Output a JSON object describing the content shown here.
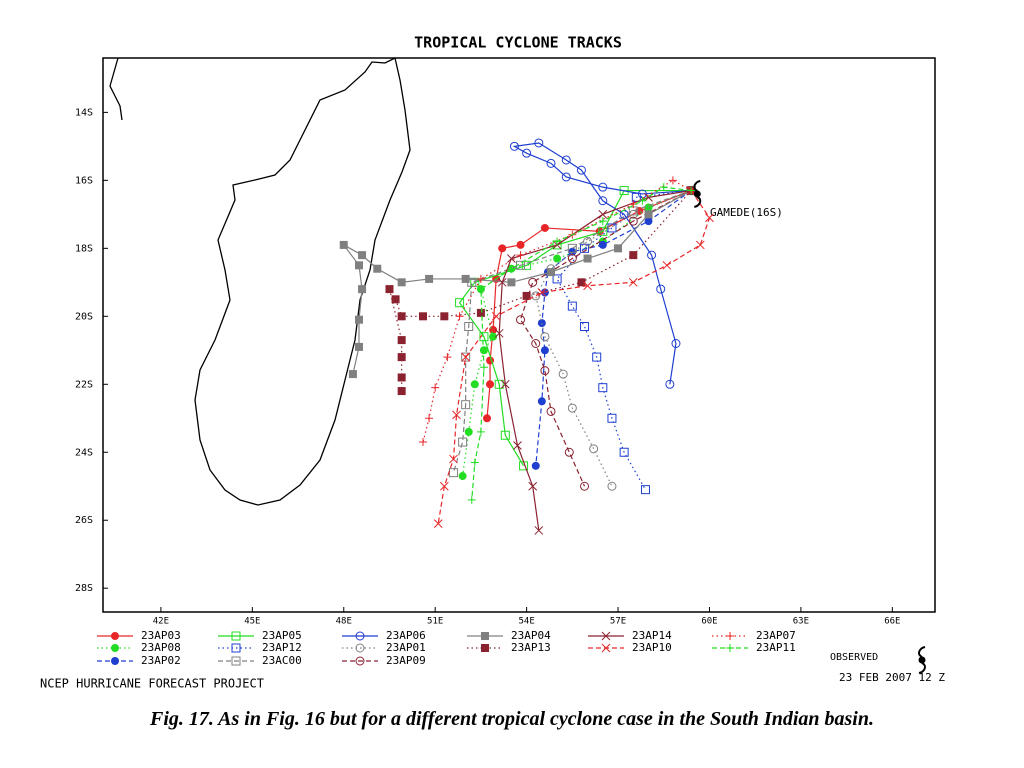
{
  "chart_data": {
    "type": "track",
    "title": "TROPICAL CYCLONE TRACKS",
    "annotation": "GAMEDE(16S)",
    "footer": "NCEP HURRICANE FORECAST PROJECT",
    "timestamp": "23 FEB 2007 12 Z",
    "xlim": [
      40.1,
      67.4
    ],
    "ylim": [
      -28.7,
      -12.4
    ],
    "xticks": [
      {
        "value": 42,
        "label": "42E"
      },
      {
        "value": 45,
        "label": "45E"
      },
      {
        "value": 48,
        "label": "48E"
      },
      {
        "value": 51,
        "label": "51E"
      },
      {
        "value": 54,
        "label": "54E"
      },
      {
        "value": 57,
        "label": "57E"
      },
      {
        "value": 60,
        "label": "60E"
      },
      {
        "value": 63,
        "label": "63E"
      },
      {
        "value": 66,
        "label": "66E"
      }
    ],
    "yticks": [
      {
        "value": -14,
        "label": "14S"
      },
      {
        "value": -16,
        "label": "16S"
      },
      {
        "value": -18,
        "label": "18S"
      },
      {
        "value": -20,
        "label": "20S"
      },
      {
        "value": -22,
        "label": "22S"
      },
      {
        "value": -24,
        "label": "24S"
      },
      {
        "value": -26,
        "label": "26S"
      },
      {
        "value": -28,
        "label": "28S"
      }
    ],
    "series": [
      {
        "name": "23AP03",
        "color": "#e8262a",
        "marker": "filled-circle",
        "dash": "solid",
        "x": [
          59.4,
          57.7,
          56.4,
          54.6,
          53.8,
          53.2,
          53.0,
          52.9,
          52.8,
          52.8,
          52.7
        ],
        "values": [
          -16.3,
          -16.9,
          -17.5,
          -17.4,
          -17.9,
          -18.0,
          -18.9,
          -20.4,
          -21.3,
          -22.0,
          -23.0
        ]
      },
      {
        "name": "23AP08",
        "color": "#22dd22",
        "marker": "filled-circle",
        "dash": "dotted",
        "x": [
          59.4,
          58.0,
          56.5,
          55.0,
          53.5,
          52.5,
          52.9,
          52.6,
          52.3,
          52.1,
          51.9
        ],
        "values": [
          -16.3,
          -16.8,
          -17.8,
          -18.3,
          -18.6,
          -19.2,
          -20.6,
          -21.0,
          -22.0,
          -23.4,
          -24.7
        ]
      },
      {
        "name": "23AP02",
        "color": "#1f3fd0",
        "marker": "filled-circle",
        "dash": "dashed",
        "x": [
          59.4,
          58.0,
          56.5,
          55.5,
          54.7,
          54.6,
          54.5,
          54.6,
          54.5,
          54.3
        ],
        "values": [
          -16.3,
          -17.2,
          -17.9,
          -18.1,
          -18.7,
          -19.3,
          -20.2,
          -21.0,
          -22.5,
          -24.4
        ]
      },
      {
        "name": "23AP05",
        "color": "#22dd22",
        "marker": "open-square",
        "dash": "solid",
        "x": [
          59.4,
          57.2,
          56.5,
          55.0,
          54.0,
          52.3,
          51.8,
          52.6,
          53.1,
          53.3,
          53.9
        ],
        "values": [
          -16.3,
          -16.3,
          -17.5,
          -17.9,
          -18.5,
          -19.0,
          -19.6,
          -20.6,
          -22.0,
          -23.5,
          -24.4
        ]
      },
      {
        "name": "23AP12",
        "color": "#1f3fd0",
        "marker": "open-square",
        "dash": "dotted",
        "x": [
          59.4,
          57.6,
          56.8,
          55.9,
          55.0,
          55.5,
          55.9,
          56.3,
          56.5,
          56.8,
          57.2,
          57.9
        ],
        "values": [
          -16.3,
          -16.5,
          -17.4,
          -18.0,
          -18.9,
          -19.7,
          -20.3,
          -21.2,
          -22.1,
          -23.0,
          -24.0,
          -25.1
        ]
      },
      {
        "name": "23AC00",
        "color": "#808080",
        "marker": "open-square",
        "dash": "dashed",
        "x": [
          59.4,
          57.5,
          55.5,
          53.8,
          52.2,
          52.1,
          52.0,
          52.0,
          51.9,
          51.6
        ],
        "values": [
          -16.3,
          -16.9,
          -18.0,
          -18.5,
          -19.0,
          -20.3,
          -21.2,
          -22.6,
          -23.7,
          -24.6
        ]
      },
      {
        "name": "23AP06",
        "color": "#1f3fd0",
        "marker": "open-circle",
        "dash": "solid",
        "x": [
          59.4,
          57.8,
          56.5,
          55.3,
          54.8,
          54.0,
          53.6,
          54.4,
          55.3,
          55.8,
          56.5,
          57.2,
          58.1,
          58.4,
          58.9,
          58.7
        ],
        "values": [
          -16.3,
          -16.4,
          -16.2,
          -15.9,
          -15.5,
          -15.2,
          -15.0,
          -14.9,
          -15.4,
          -15.7,
          -16.6,
          -17.0,
          -18.2,
          -19.2,
          -20.8,
          -22.0
        ]
      },
      {
        "name": "23AP01",
        "color": "#808080",
        "marker": "open-circle",
        "dash": "dotted",
        "x": [
          59.4,
          57.5,
          56.0,
          54.8,
          54.3,
          54.6,
          55.2,
          55.5,
          56.2,
          56.8
        ],
        "values": [
          -16.3,
          -17.0,
          -17.8,
          -18.6,
          -19.4,
          -20.6,
          -21.7,
          -22.7,
          -23.9,
          -25.0
        ]
      },
      {
        "name": "23AP09",
        "color": "#8b2230",
        "marker": "open-circle",
        "dash": "dashed",
        "x": [
          59.4,
          57.5,
          55.5,
          54.2,
          53.8,
          54.3,
          54.6,
          54.8,
          55.4,
          55.9
        ],
        "values": [
          -16.3,
          -17.2,
          -18.3,
          -19.0,
          -20.1,
          -20.8,
          -21.6,
          -22.8,
          -24.0,
          -25.0
        ]
      },
      {
        "name": "23AP04",
        "color": "#808080",
        "marker": "filled-square",
        "dash": "solid",
        "x": [
          59.4,
          58.0,
          57.0,
          56.0,
          54.8,
          53.5,
          52.0,
          50.8,
          49.9,
          49.1,
          48.6,
          48.0,
          48.5,
          48.6,
          48.5,
          48.5,
          48.3
        ],
        "values": [
          -16.3,
          -17.0,
          -18.0,
          -18.3,
          -18.7,
          -19.0,
          -18.9,
          -18.9,
          -19.0,
          -18.6,
          -18.2,
          -17.9,
          -18.5,
          -19.2,
          -20.1,
          -20.9,
          -21.7
        ]
      },
      {
        "name": "23AP13",
        "color": "#8b2230",
        "marker": "filled-square",
        "dash": "dotted",
        "x": [
          59.4,
          57.5,
          55.8,
          54.0,
          52.5,
          51.3,
          50.6,
          49.9,
          49.7,
          49.5,
          49.9,
          49.9,
          49.9,
          49.9
        ],
        "values": [
          -16.3,
          -18.2,
          -19.0,
          -19.4,
          -19.9,
          -20.0,
          -20.0,
          -20.0,
          -19.5,
          -19.2,
          -20.7,
          -21.2,
          -21.8,
          -22.2
        ]
      },
      {
        "name": "23AP14",
        "color": "#8b2230",
        "marker": "x",
        "dash": "solid",
        "x": [
          59.4,
          58.0,
          56.5,
          55.0,
          53.5,
          53.2,
          53.1,
          53.3,
          53.7,
          54.2,
          54.4
        ],
        "values": [
          -16.3,
          -16.5,
          -17.0,
          -17.9,
          -18.3,
          -19.0,
          -20.5,
          -22.0,
          -23.8,
          -25.0,
          -26.3
        ]
      },
      {
        "name": "23AP10",
        "color": "#e8262a",
        "marker": "x",
        "dash": "dashed",
        "x": [
          59.4,
          60.0,
          59.7,
          58.6,
          57.5,
          56.0,
          54.5,
          53.0,
          52.0,
          51.7,
          51.6,
          51.3,
          51.1
        ],
        "values": [
          -16.3,
          -17.1,
          -17.9,
          -18.5,
          -19.0,
          -19.1,
          -19.3,
          -20.0,
          -21.2,
          -22.9,
          -24.2,
          -25.0,
          -26.1
        ]
      },
      {
        "name": "23AP07",
        "color": "#e8262a",
        "marker": "plus",
        "dash": "dotted",
        "x": [
          59.4,
          58.8,
          57.5,
          55.5,
          53.8,
          52.5,
          51.8,
          51.4,
          51.0,
          50.8,
          50.6
        ],
        "values": [
          -16.3,
          -16.0,
          -16.7,
          -17.6,
          -18.2,
          -18.9,
          -20.0,
          -21.2,
          -22.1,
          -23.0,
          -23.7
        ]
      },
      {
        "name": "23AP11",
        "color": "#22dd22",
        "marker": "plus",
        "dash": "dashed",
        "x": [
          59.4,
          58.5,
          57.8,
          56.5,
          55.0,
          53.5,
          52.5,
          52.6,
          52.5,
          52.3,
          52.2
        ],
        "values": [
          -16.3,
          -16.2,
          -16.6,
          -17.2,
          -17.8,
          -18.6,
          -19.2,
          -21.5,
          -23.4,
          -24.3,
          -25.4
        ]
      }
    ],
    "observed": {
      "name": "OBSERVED",
      "color": "#000000",
      "x": [
        59.6
      ],
      "values": [
        -16.4
      ]
    }
  },
  "caption": "Fig. 17. As in Fig. 16 but for a different tropical cyclone case in the South Indian basin."
}
